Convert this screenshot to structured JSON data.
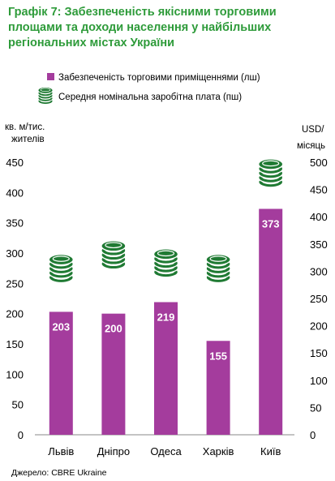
{
  "header": {
    "title_lines": [
      "Графік 7: Забезпеченість якісними торговими",
      "площами та доходи населення у найбільших",
      "регіональних містах України"
    ]
  },
  "source": "Джерело:  CBRE Ukraine",
  "colors": {
    "title": "#2e9b3a",
    "bar": "#a43c9d",
    "coin": "#2a8a3e",
    "bar_label": "#ffffff"
  },
  "chart_data": {
    "type": "bar",
    "categories": [
      "Львів",
      "Дніпро",
      "Одеса",
      "Харків",
      "Київ"
    ],
    "series": [
      {
        "name": "Забезпеченість торговими приміщеннями (лш)",
        "axis": "left",
        "mark": "bar",
        "values": [
          203,
          200,
          219,
          155,
          373
        ],
        "data_labels": [
          "203",
          "200",
          "219",
          "155",
          "373"
        ]
      },
      {
        "name": "Середня номінальна заробітна плата (пш)",
        "axis": "right",
        "mark": "coin-icon",
        "values": [
          305,
          330,
          315,
          305,
          480
        ]
      }
    ],
    "ylabel_left": [
      "кв. м/тис.",
      "жителів"
    ],
    "ylabel_right": [
      "USD/",
      "місяць"
    ],
    "ylim_left": [
      0,
      450
    ],
    "yticks_left": [
      "0",
      "50",
      "100",
      "150",
      "200",
      "250",
      "300",
      "350",
      "400",
      "450"
    ],
    "ylim_right": [
      0,
      500
    ],
    "yticks_right": [
      "0",
      "50",
      "100",
      "150",
      "200",
      "250",
      "300",
      "350",
      "400",
      "450",
      "500"
    ],
    "grid": false,
    "legend_position": "top"
  }
}
